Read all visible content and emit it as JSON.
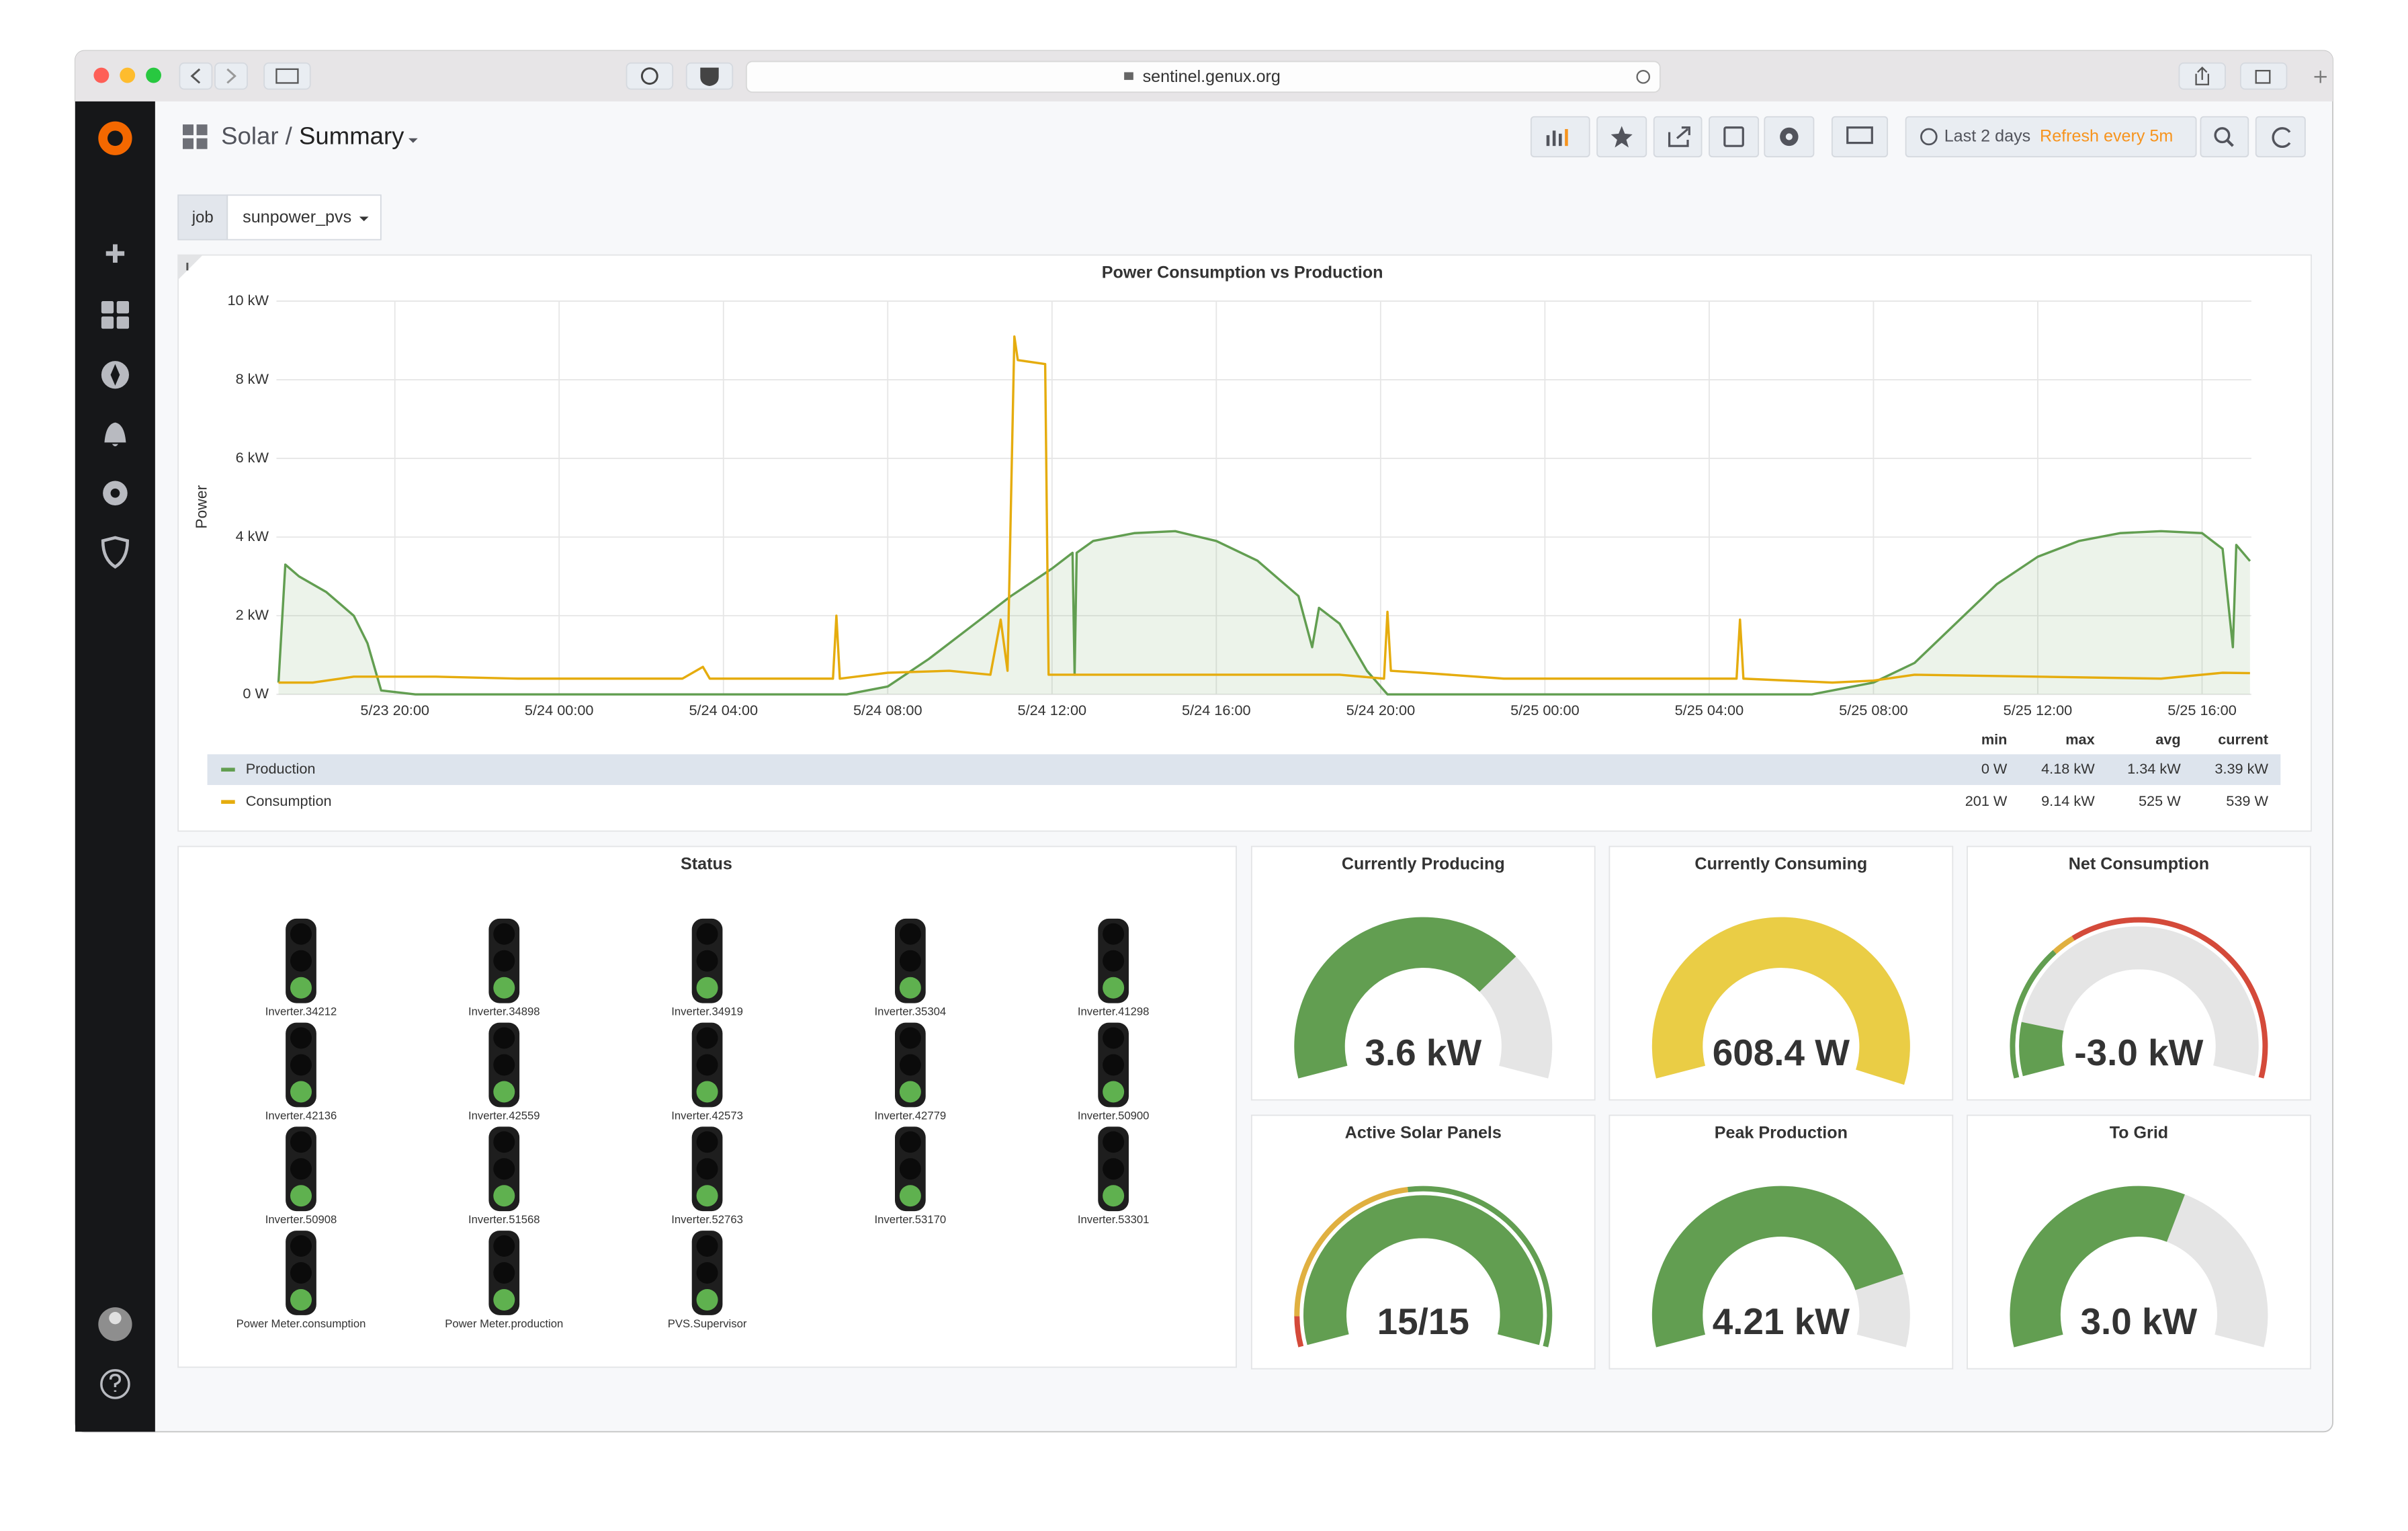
{
  "browser": {
    "url": "sentinel.genux.org"
  },
  "header": {
    "folder": "Solar",
    "separator": "/",
    "title": "Summary",
    "time_range": "Last 2 days",
    "refresh": "Refresh every 5m"
  },
  "variables": [
    {
      "label": "job",
      "value": "sunpower_pvs"
    }
  ],
  "graph_panel": {
    "type": "line",
    "title": "Power Consumption vs Production",
    "y_label": "Power",
    "xlim": [
      "5/23 17:07",
      "5/25 17:12"
    ],
    "xticks": [
      "5/23 20:00",
      "5/24 00:00",
      "5/24 04:00",
      "5/24 08:00",
      "5/24 12:00",
      "5/24 16:00",
      "5/24 20:00",
      "5/25 00:00",
      "5/25 04:00",
      "5/25 08:00",
      "5/25 12:00",
      "5/25 16:00"
    ],
    "ylim": [
      0,
      10
    ],
    "yticks": [
      {
        "value": 0,
        "label": "0 W"
      },
      {
        "value": 2,
        "label": "2 kW"
      },
      {
        "value": 4,
        "label": "4 kW"
      },
      {
        "value": 6,
        "label": "6 kW"
      },
      {
        "value": 8,
        "label": "8 kW"
      },
      {
        "value": 10,
        "label": "10 kW"
      }
    ],
    "grid": true,
    "legend_columns": [
      "min",
      "max",
      "avg",
      "current"
    ],
    "series": [
      {
        "name": "Production",
        "color": "#629e51",
        "fill": true,
        "x": [
          "5/23 17:10",
          "5/23 17:20",
          "5/23 17:40",
          "5/23 18:20",
          "5/23 19:00",
          "5/23 19:20",
          "5/23 19:40",
          "5/23 20:30",
          "5/24 07:00",
          "5/24 08:00",
          "5/24 09:00",
          "5/24 10:00",
          "5/24 11:00",
          "5/24 12:00",
          "5/24 12:30",
          "5/24 12:33",
          "5/24 12:36",
          "5/24 13:00",
          "5/24 14:00",
          "5/24 15:00",
          "5/24 16:00",
          "5/24 17:00",
          "5/24 18:00",
          "5/24 18:20",
          "5/24 18:30",
          "5/24 19:00",
          "5/24 19:40",
          "5/24 20:10",
          "5/25 06:30",
          "5/25 08:00",
          "5/25 09:00",
          "5/25 10:00",
          "5/25 11:00",
          "5/25 12:00",
          "5/25 13:00",
          "5/25 14:00",
          "5/25 15:00",
          "5/25 16:00",
          "5/25 16:30",
          "5/25 16:45",
          "5/25 16:50",
          "5/25 17:10"
        ],
        "values": [
          0.3,
          3.3,
          3.0,
          2.6,
          2.0,
          1.3,
          0.1,
          0,
          0,
          0.2,
          0.9,
          1.7,
          2.5,
          3.2,
          3.6,
          0.5,
          3.6,
          3.9,
          4.1,
          4.15,
          3.9,
          3.4,
          2.5,
          1.2,
          2.2,
          1.8,
          0.6,
          0,
          0,
          0.3,
          0.8,
          1.8,
          2.8,
          3.5,
          3.9,
          4.1,
          4.15,
          4.1,
          3.7,
          1.2,
          3.8,
          3.39
        ],
        "legend_values": [
          "0 W",
          "4.18 kW",
          "1.34 kW",
          "3.39 kW"
        ]
      },
      {
        "name": "Consumption",
        "color": "#e5ac0e",
        "fill": false,
        "x": [
          "5/23 17:10",
          "5/23 18:00",
          "5/23 19:00",
          "5/23 21:00",
          "5/23 23:00",
          "5/24 03:00",
          "5/24 03:30",
          "5/24 03:40",
          "5/24 06:40",
          "5/24 06:45",
          "5/24 06:50",
          "5/24 08:00",
          "5/24 09:30",
          "5/24 10:30",
          "5/24 10:45",
          "5/24 10:55",
          "5/24 11:05",
          "5/24 11:10",
          "5/24 11:50",
          "5/24 11:55",
          "5/24 14:00",
          "5/24 17:00",
          "5/24 19:00",
          "5/24 20:05",
          "5/24 20:10",
          "5/24 20:15",
          "5/24 21:00",
          "5/24 23:00",
          "5/25 03:00",
          "5/25 04:40",
          "5/25 04:45",
          "5/25 04:50",
          "5/25 07:00",
          "5/25 08:00",
          "5/25 09:00",
          "5/25 12:00",
          "5/25 15:00",
          "5/25 16:30",
          "5/25 17:10"
        ],
        "values": [
          0.3,
          0.3,
          0.45,
          0.45,
          0.4,
          0.4,
          0.7,
          0.4,
          0.4,
          2.0,
          0.4,
          0.55,
          0.6,
          0.5,
          1.9,
          0.6,
          9.1,
          8.5,
          8.4,
          0.5,
          0.5,
          0.5,
          0.5,
          0.4,
          2.1,
          0.6,
          0.55,
          0.4,
          0.4,
          0.4,
          1.9,
          0.4,
          0.3,
          0.35,
          0.5,
          0.45,
          0.4,
          0.55,
          0.54
        ],
        "legend_values": [
          "201 W",
          "9.14 kW",
          "525 W",
          "539 W"
        ]
      }
    ]
  },
  "status_panel": {
    "title": "Status",
    "items": [
      {
        "label": "Inverter.34212",
        "state": "green"
      },
      {
        "label": "Inverter.34898",
        "state": "green"
      },
      {
        "label": "Inverter.34919",
        "state": "green"
      },
      {
        "label": "Inverter.35304",
        "state": "green"
      },
      {
        "label": "Inverter.41298",
        "state": "green"
      },
      {
        "label": "Inverter.42136",
        "state": "green"
      },
      {
        "label": "Inverter.42559",
        "state": "green"
      },
      {
        "label": "Inverter.42573",
        "state": "green"
      },
      {
        "label": "Inverter.42779",
        "state": "green"
      },
      {
        "label": "Inverter.50900",
        "state": "green"
      },
      {
        "label": "Inverter.50908",
        "state": "green"
      },
      {
        "label": "Inverter.51568",
        "state": "green"
      },
      {
        "label": "Inverter.52763",
        "state": "green"
      },
      {
        "label": "Inverter.53170",
        "state": "green"
      },
      {
        "label": "Inverter.53301",
        "state": "green"
      },
      {
        "label": "Power Meter.consumption",
        "state": "green"
      },
      {
        "label": "Power Meter.production",
        "state": "green"
      },
      {
        "label": "PVS.Supervisor",
        "state": "green"
      }
    ]
  },
  "gauges": [
    {
      "type": "gauge",
      "title": "Currently Producing",
      "value": 3.6,
      "value_label": "3.6 kW",
      "min": 0,
      "max": 5,
      "color": "#629e51"
    },
    {
      "type": "gauge",
      "title": "Currently Consuming",
      "value": 608.4,
      "value_label": "608.4 W",
      "min": 0,
      "max": 600,
      "color": "#eacd45"
    },
    {
      "type": "gauge",
      "title": "Net Consumption",
      "value": -3.0,
      "value_label": "-3.0 kW",
      "min": -4,
      "max": 4,
      "color": "#629e51",
      "thresholds": [
        {
          "from": -4,
          "to": -1.6,
          "color": "#629e51"
        },
        {
          "from": -1.6,
          "to": -1.2,
          "color": "#e0b040"
        },
        {
          "from": -1.2,
          "to": 4,
          "color": "#d44a3a"
        }
      ]
    },
    {
      "type": "gauge",
      "title": "Active Solar Panels",
      "value": 15,
      "value_label": "15/15",
      "min": 0,
      "max": 15,
      "color": "#629e51",
      "thresholds": [
        {
          "from": 0,
          "to": 1,
          "color": "#d44a3a"
        },
        {
          "from": 1,
          "to": 7,
          "color": "#e0b040"
        },
        {
          "from": 7,
          "to": 15,
          "color": "#629e51"
        }
      ]
    },
    {
      "type": "gauge",
      "title": "Peak Production",
      "value": 4.21,
      "value_label": "4.21 kW",
      "min": 0,
      "max": 5,
      "color": "#629e51"
    },
    {
      "type": "gauge",
      "title": "To Grid",
      "value": 3.0,
      "value_label": "3.0 kW",
      "min": 0,
      "max": 5,
      "color": "#629e51"
    }
  ]
}
